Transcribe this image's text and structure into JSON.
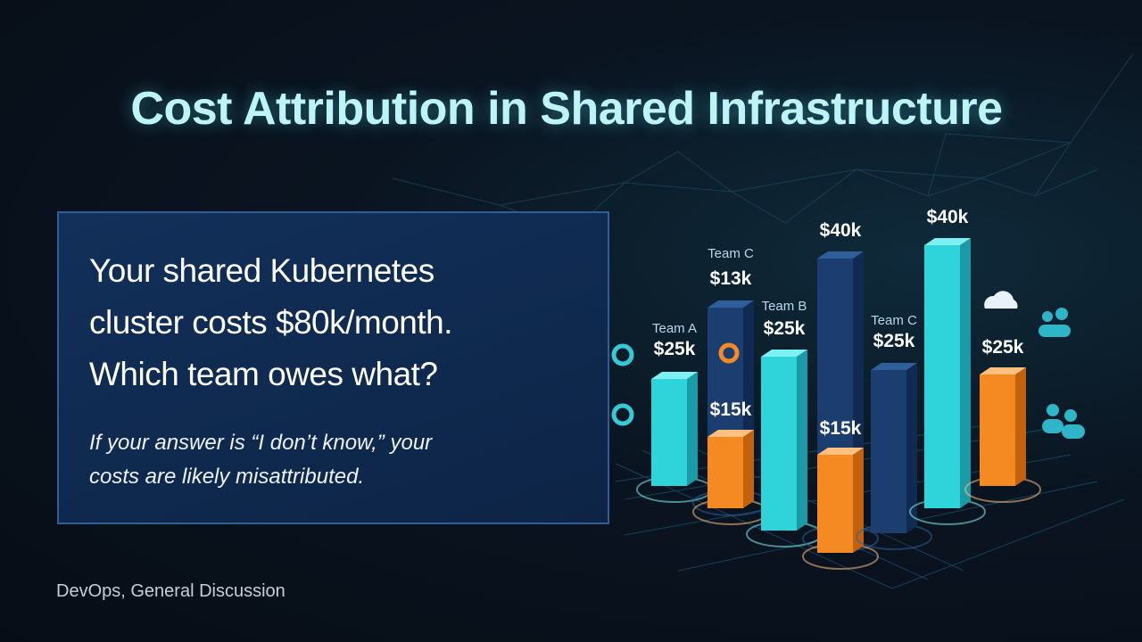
{
  "header": {
    "title": "Cost Attribution in Shared Infrastructure"
  },
  "card": {
    "question_lines": [
      "Your shared Kubernetes",
      "cluster costs $80k/month.",
      "Which team owes what?"
    ],
    "note_lines": [
      "If your answer is “I don’t know,” your",
      "costs are likely misattributed."
    ]
  },
  "illustration": {
    "bars": [
      {
        "team": "Team A",
        "amount": "$25k"
      },
      {
        "team": "Team C",
        "amount": "$13k"
      },
      {
        "amount": "$15k"
      },
      {
        "team": "Team B",
        "amount": "$25k"
      },
      {
        "amount": "$40k"
      },
      {
        "amount": "$15k"
      },
      {
        "team": "Team C",
        "amount": "$25k"
      },
      {
        "amount": "$40k"
      },
      {
        "amount": "$25k"
      }
    ]
  },
  "footer": {
    "tags": "DevOps, General Discussion"
  }
}
